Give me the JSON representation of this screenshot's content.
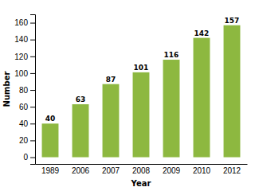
{
  "chart_data": {
    "type": "bar",
    "xlabel": "Year",
    "ylabel": "Number",
    "categories": [
      "1989",
      "2006",
      "2007",
      "2008",
      "2009",
      "2010",
      "2012"
    ],
    "values": [
      40,
      63,
      87,
      101,
      116,
      142,
      157
    ],
    "color": "#8db840",
    "ylim": [
      -8,
      170
    ],
    "yticks": [
      0,
      20,
      40,
      60,
      80,
      100,
      120,
      140,
      160
    ],
    "grid": false,
    "data_labels": true
  }
}
